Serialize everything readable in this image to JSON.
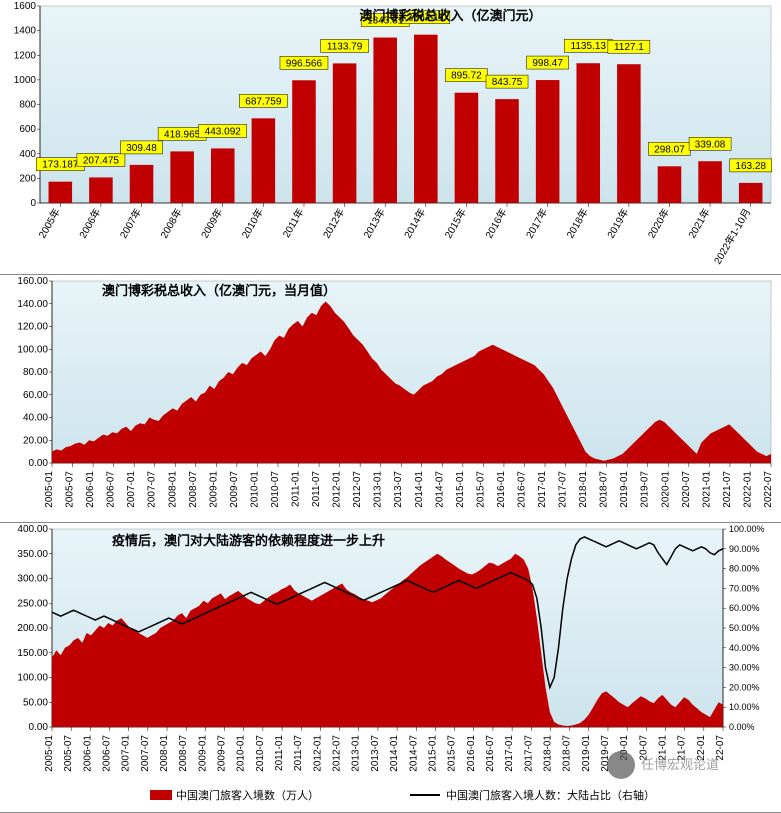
{
  "panel1": {
    "title": "澳门博彩税总收入（亿澳门元）",
    "ylim": [
      0,
      1600
    ],
    "ytick_step": 200,
    "categories": [
      "2005年",
      "2006年",
      "2007年",
      "2008年",
      "2009年",
      "2010年",
      "2011年",
      "2012年",
      "2013年",
      "2014年",
      "2015年",
      "2016年",
      "2017年",
      "2018年",
      "2019年",
      "2020年",
      "2021年",
      "2022年1-10月"
    ],
    "values": [
      173.187,
      207.475,
      309.48,
      418.965,
      443.092,
      687.759,
      996.566,
      1133.79,
      1343.81,
      1367.11,
      895.72,
      843.75,
      998.47,
      1135.13,
      1127.1,
      298.07,
      339.08,
      163.28
    ],
    "bar_color": "#c00000",
    "label_bg": "#ffff00",
    "background": "linear-gradient(#e8f4f8,#cde4ed)",
    "title_fontsize": 13,
    "label_fontsize": 10
  },
  "panel2": {
    "title": "澳门博彩税总收入（亿澳门元，当月值）",
    "ylim": [
      0,
      160
    ],
    "ytick_step": 20,
    "xlabels": [
      "2005-01",
      "2005-07",
      "2006-01",
      "2006-07",
      "2007-01",
      "2007-07",
      "2008-01",
      "2008-07",
      "2009-01",
      "2009-07",
      "2010-01",
      "2010-07",
      "2011-01",
      "2011-07",
      "2012-01",
      "2012-07",
      "2013-01",
      "2013-07",
      "2014-01",
      "2014-07",
      "2015-01",
      "2015-07",
      "2016-01",
      "2016-07",
      "2017-01",
      "2017-07",
      "2018-01",
      "2018-07",
      "2019-01",
      "2019-07",
      "2020-01",
      "2020-07",
      "2021-01",
      "2021-07",
      "2022-01",
      "2022-07"
    ],
    "series": [
      10,
      12,
      11,
      14,
      15,
      17,
      18,
      16,
      20,
      19,
      22,
      25,
      24,
      27,
      26,
      30,
      32,
      28,
      33,
      35,
      34,
      40,
      38,
      37,
      42,
      45,
      48,
      46,
      52,
      55,
      58,
      54,
      60,
      62,
      68,
      65,
      72,
      75,
      80,
      78,
      84,
      88,
      86,
      92,
      95,
      98,
      94,
      100,
      108,
      112,
      110,
      118,
      122,
      125,
      120,
      128,
      132,
      130,
      138,
      142,
      138,
      132,
      128,
      124,
      118,
      112,
      108,
      104,
      98,
      92,
      88,
      82,
      78,
      74,
      70,
      68,
      65,
      62,
      60,
      64,
      68,
      70,
      72,
      76,
      78,
      82,
      84,
      86,
      88,
      90,
      92,
      94,
      98,
      100,
      102,
      104,
      102,
      100,
      98,
      96,
      94,
      92,
      90,
      88,
      86,
      82,
      78,
      72,
      66,
      58,
      50,
      42,
      34,
      26,
      18,
      10,
      6,
      4,
      3,
      2,
      3,
      4,
      6,
      8,
      12,
      16,
      20,
      24,
      28,
      32,
      36,
      38,
      36,
      32,
      28,
      24,
      20,
      16,
      12,
      8,
      18,
      22,
      26,
      28,
      30,
      32,
      34,
      30,
      26,
      22,
      18,
      14,
      10,
      8,
      6,
      8
    ],
    "area_color": "#c00000",
    "title_fontsize": 13
  },
  "panel3": {
    "title": "疫情后，澳门对大陆游客的依赖程度进一步上升",
    "ylim_left": [
      0,
      400
    ],
    "ytick_left_step": 50,
    "ylim_right": [
      0,
      100
    ],
    "ytick_right_step": 10,
    "right_format": "%",
    "xlabels": [
      "2005-01",
      "2005-07",
      "2006-01",
      "2006-07",
      "2007-01",
      "2007-07",
      "2008-01",
      "2008-07",
      "2009-01",
      "2009-07",
      "2010-01",
      "2010-07",
      "2011-01",
      "2011-07",
      "2012-01",
      "2012-07",
      "2013-01",
      "2013-07",
      "2014-01",
      "2014-07",
      "2015-01",
      "2015-07",
      "2016-01",
      "2016-07",
      "2017-01",
      "2017-07",
      "2018-01",
      "2018-07",
      "2019-01",
      "2019-07",
      "20-01",
      "20-07",
      "21-01",
      "21-07",
      "22-01",
      "22-07"
    ],
    "visitors": [
      140,
      155,
      145,
      160,
      165,
      175,
      180,
      170,
      190,
      185,
      195,
      205,
      200,
      210,
      205,
      215,
      220,
      210,
      200,
      195,
      190,
      185,
      180,
      185,
      190,
      200,
      205,
      210,
      215,
      225,
      230,
      220,
      235,
      240,
      245,
      255,
      250,
      260,
      265,
      270,
      258,
      265,
      270,
      275,
      268,
      260,
      255,
      250,
      248,
      255,
      262,
      268,
      272,
      278,
      282,
      288,
      276,
      270,
      265,
      260,
      255,
      260,
      265,
      270,
      275,
      280,
      285,
      290,
      278,
      272,
      268,
      262,
      258,
      255,
      252,
      256,
      260,
      268,
      275,
      282,
      288,
      296,
      302,
      310,
      318,
      326,
      332,
      338,
      344,
      350,
      345,
      338,
      332,
      326,
      320,
      315,
      310,
      308,
      312,
      318,
      325,
      332,
      330,
      325,
      330,
      335,
      340,
      350,
      345,
      338,
      320,
      280,
      220,
      150,
      80,
      30,
      10,
      5,
      3,
      2,
      3,
      5,
      8,
      15,
      25,
      40,
      55,
      68,
      72,
      65,
      58,
      50,
      45,
      40,
      48,
      55,
      62,
      58,
      52,
      48,
      58,
      65,
      55,
      45,
      40,
      50,
      60,
      55,
      45,
      38,
      30,
      25,
      20,
      35,
      50,
      45
    ],
    "pct": [
      58,
      57,
      56,
      57,
      58,
      59,
      58,
      57,
      56,
      55,
      54,
      55,
      56,
      55,
      54,
      53,
      52,
      51,
      50,
      49,
      48,
      49,
      50,
      51,
      52,
      53,
      54,
      55,
      54,
      53,
      52,
      53,
      54,
      55,
      56,
      57,
      58,
      59,
      60,
      61,
      62,
      63,
      64,
      65,
      66,
      67,
      68,
      67,
      66,
      65,
      64,
      63,
      62,
      63,
      64,
      65,
      66,
      67,
      68,
      69,
      70,
      71,
      72,
      73,
      72,
      71,
      70,
      69,
      68,
      67,
      66,
      65,
      64,
      65,
      66,
      67,
      68,
      69,
      70,
      71,
      72,
      73,
      74,
      73,
      72,
      71,
      70,
      69,
      68,
      69,
      70,
      71,
      72,
      73,
      74,
      73,
      72,
      71,
      70,
      71,
      72,
      73,
      74,
      75,
      76,
      77,
      78,
      77,
      76,
      75,
      74,
      72,
      65,
      50,
      30,
      20,
      25,
      40,
      60,
      75,
      85,
      92,
      95,
      96,
      95,
      94,
      93,
      92,
      91,
      92,
      93,
      94,
      93,
      92,
      91,
      90,
      91,
      92,
      93,
      92,
      88,
      85,
      82,
      86,
      90,
      92,
      91,
      90,
      89,
      90,
      91,
      90,
      88,
      87,
      89,
      90
    ],
    "legend_area": "中国澳门旅客入境数（万人）",
    "legend_line": "中国澳门旅客入境人数：大陆占比（右轴）",
    "area_color": "#c00000",
    "line_color": "#000000",
    "title_fontsize": 13
  },
  "watermark": "任博宏观论道"
}
